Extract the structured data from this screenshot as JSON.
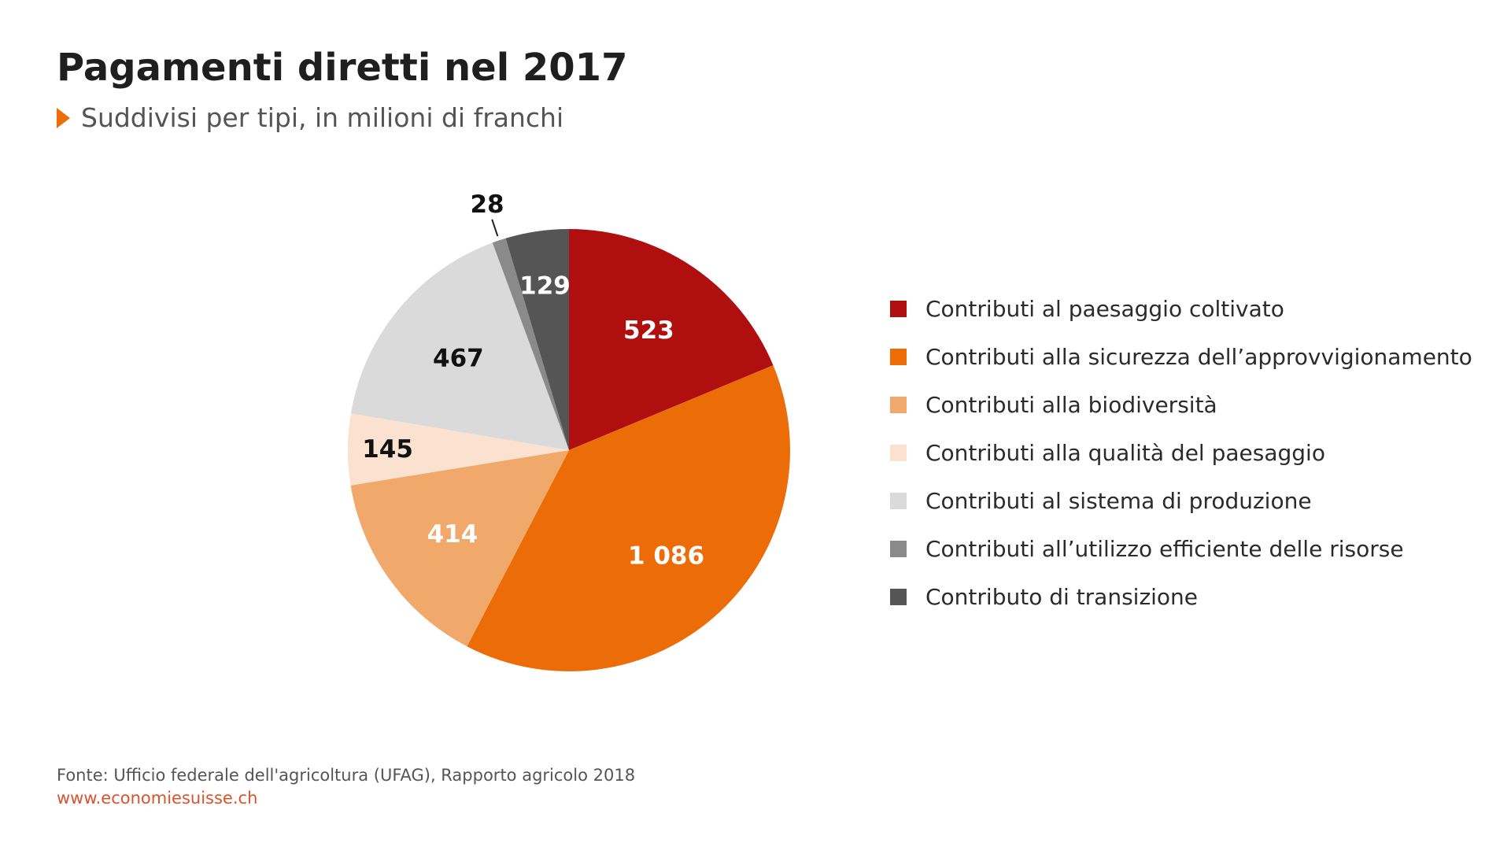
{
  "header": {
    "title": "Pagamenti diretti nel 2017",
    "subtitle": "Suddivisi per tipi, in milioni di franchi"
  },
  "footer": {
    "source": "Fonte: Ufficio federale dell'agricoltura (UFAG), Rapporto agricolo 2018",
    "url": "www.economiesuisse.ch"
  },
  "colors": {
    "accent": "#ec6d07",
    "url": "#d9542c"
  },
  "chart_data": {
    "type": "pie",
    "title": "Pagamenti diretti nel 2017",
    "subtitle": "Suddivisi per tipi, in milioni di franchi",
    "legend_position": "right",
    "slices": [
      {
        "name": "Contributi al paesaggio coltivato",
        "value": 523,
        "label": "523",
        "color": "#b00f10",
        "label_color": "#ffffff"
      },
      {
        "name": "Contributi alla sicurezza dell’approvvigionamento",
        "value": 1086,
        "label": "1 086",
        "color": "#ec6d07",
        "label_color": "#ffffff"
      },
      {
        "name": "Contributi alla biodiversità",
        "value": 414,
        "label": "414",
        "color": "#f1a96b",
        "label_color": "#ffffff"
      },
      {
        "name": "Contributi alla qualità del paesaggio",
        "value": 145,
        "label": "145",
        "color": "#fbe1d0",
        "label_color": "#111111"
      },
      {
        "name": "Contributi al sistema di produzione",
        "value": 467,
        "label": "467",
        "color": "#dadada",
        "label_color": "#111111"
      },
      {
        "name": "Contributi all’utilizzo efficiente delle risorse",
        "value": 28,
        "label": "28",
        "color": "#8a8a8a",
        "label_color": "#111111"
      },
      {
        "name": "Contributo di transizione",
        "value": 129,
        "label": "129",
        "color": "#555555",
        "label_color": "#ffffff"
      }
    ]
  }
}
